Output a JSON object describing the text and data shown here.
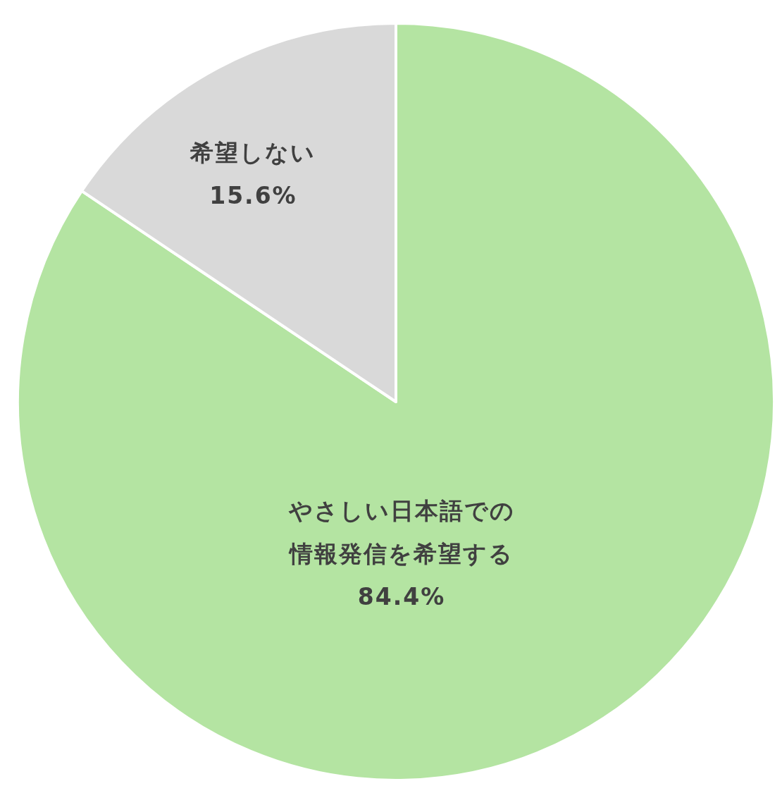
{
  "chart_data": {
    "type": "pie",
    "categories": [
      "やさしい日本語での情報発信を希望する",
      "希望しない"
    ],
    "values": [
      84.4,
      15.6
    ],
    "value_labels": [
      "84.4%",
      "15.6%"
    ],
    "colors": [
      "#b4e4a2",
      "#d9d9d9"
    ]
  }
}
